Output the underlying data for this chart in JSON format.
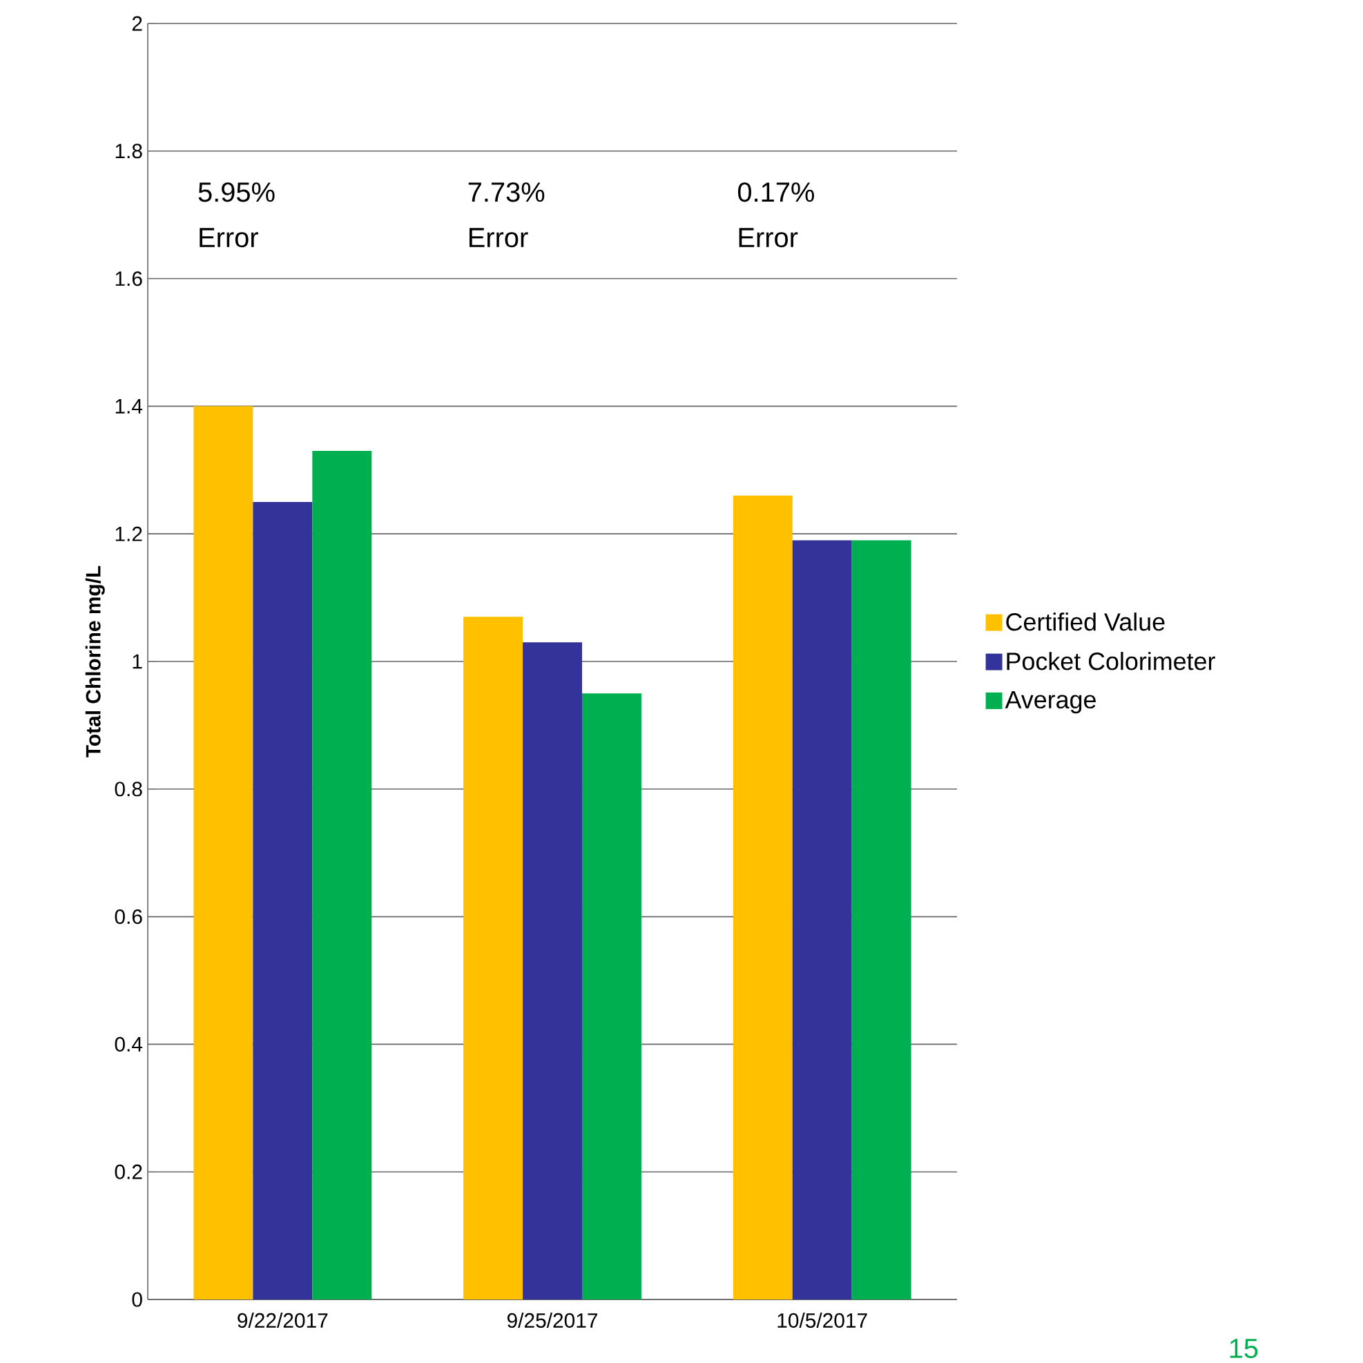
{
  "chart_data": {
    "type": "bar",
    "ylabel": "Total Chlorine mg/L",
    "categories": [
      "9/22/2017",
      "9/25/2017",
      "10/5/2017"
    ],
    "series": [
      {
        "name": "Certified Value",
        "color": "#ffc000",
        "values": [
          1.4,
          1.07,
          1.26
        ]
      },
      {
        "name": "Pocket Colorimeter",
        "color": "#333399",
        "values": [
          1.25,
          1.03,
          1.19
        ]
      },
      {
        "name": "Average",
        "color": "#00b050",
        "values": [
          1.33,
          0.95,
          1.19
        ]
      }
    ],
    "ylim": [
      0,
      2
    ],
    "yticks": [
      0,
      0.2,
      0.4,
      0.6,
      0.8,
      1,
      1.2,
      1.4,
      1.6,
      1.8,
      2
    ],
    "grid": "y",
    "legend": "right",
    "annotations": [
      "5.95% Error",
      "7.73% Error",
      "0.17% Error",
      "15"
    ]
  }
}
